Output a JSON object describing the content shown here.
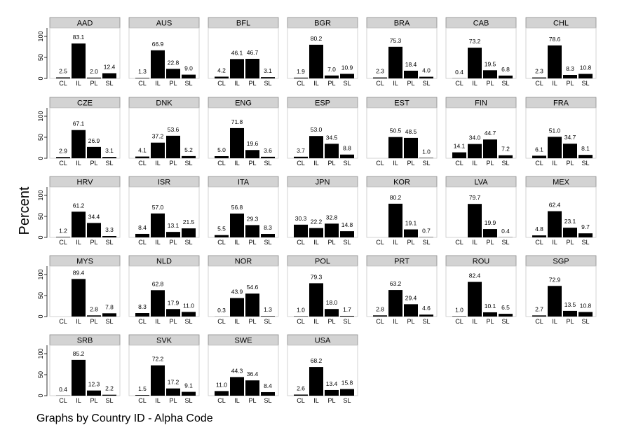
{
  "ylabel": "Percent",
  "note": "Graphs by Country ID - Alpha Code",
  "chart_data": {
    "type": "bar",
    "categories": [
      "CL",
      "IL",
      "PL",
      "SL"
    ],
    "ylim": [
      0,
      100
    ],
    "yticks": [
      0,
      50,
      100
    ],
    "ylabel": "Percent",
    "bar_color": "#000000",
    "header_color": "#d3d3d3",
    "panels": [
      {
        "title": "AAD",
        "values": [
          2.5,
          83.1,
          2.0,
          12.4
        ]
      },
      {
        "title": "AUS",
        "values": [
          1.3,
          66.9,
          22.8,
          9.0
        ]
      },
      {
        "title": "BFL",
        "values": [
          4.2,
          46.1,
          46.7,
          3.1
        ]
      },
      {
        "title": "BGR",
        "values": [
          1.9,
          80.2,
          7.0,
          10.9
        ]
      },
      {
        "title": "BRA",
        "values": [
          2.3,
          75.3,
          18.4,
          4.0
        ]
      },
      {
        "title": "CAB",
        "values": [
          0.4,
          73.2,
          19.5,
          6.8
        ]
      },
      {
        "title": "CHL",
        "values": [
          2.3,
          78.6,
          8.3,
          10.8
        ]
      },
      {
        "title": "CZE",
        "values": [
          2.9,
          67.1,
          26.9,
          3.1
        ]
      },
      {
        "title": "DNK",
        "values": [
          4.1,
          37.2,
          53.6,
          5.2
        ]
      },
      {
        "title": "ENG",
        "values": [
          5.0,
          71.8,
          19.6,
          3.6
        ]
      },
      {
        "title": "ESP",
        "values": [
          3.7,
          53.0,
          34.5,
          8.8
        ]
      },
      {
        "title": "EST",
        "values": [
          null,
          50.5,
          48.5,
          1.0
        ]
      },
      {
        "title": "FIN",
        "values": [
          14.1,
          34.0,
          44.7,
          7.2
        ]
      },
      {
        "title": "FRA",
        "values": [
          6.1,
          51.0,
          34.7,
          8.1
        ]
      },
      {
        "title": "HRV",
        "values": [
          1.2,
          61.2,
          34.4,
          3.3
        ]
      },
      {
        "title": "ISR",
        "values": [
          8.4,
          57.0,
          13.1,
          21.5
        ]
      },
      {
        "title": "ITA",
        "values": [
          5.5,
          56.8,
          29.3,
          8.3
        ]
      },
      {
        "title": "JPN",
        "values": [
          30.3,
          22.2,
          32.8,
          14.8
        ]
      },
      {
        "title": "KOR",
        "values": [
          null,
          80.2,
          19.1,
          0.7
        ]
      },
      {
        "title": "LVA",
        "values": [
          null,
          79.7,
          19.9,
          0.4
        ]
      },
      {
        "title": "MEX",
        "values": [
          4.8,
          62.4,
          23.1,
          9.7
        ]
      },
      {
        "title": "MYS",
        "values": [
          null,
          89.4,
          2.8,
          7.8
        ]
      },
      {
        "title": "NLD",
        "values": [
          8.3,
          62.8,
          17.9,
          11.0
        ]
      },
      {
        "title": "NOR",
        "values": [
          0.3,
          43.9,
          54.6,
          1.3
        ]
      },
      {
        "title": "POL",
        "values": [
          1.0,
          79.3,
          18.0,
          1.7
        ]
      },
      {
        "title": "PRT",
        "values": [
          2.8,
          63.2,
          29.4,
          4.6
        ]
      },
      {
        "title": "ROU",
        "values": [
          1.0,
          82.4,
          10.1,
          6.5
        ]
      },
      {
        "title": "SGP",
        "values": [
          2.7,
          72.9,
          13.5,
          10.8
        ]
      },
      {
        "title": "SRB",
        "values": [
          0.4,
          85.2,
          12.3,
          2.2
        ]
      },
      {
        "title": "SVK",
        "values": [
          1.5,
          72.2,
          17.2,
          9.1
        ]
      },
      {
        "title": "SWE",
        "values": [
          11.0,
          44.3,
          36.4,
          8.4
        ]
      },
      {
        "title": "USA",
        "values": [
          2.6,
          68.2,
          13.4,
          15.8
        ]
      }
    ]
  }
}
